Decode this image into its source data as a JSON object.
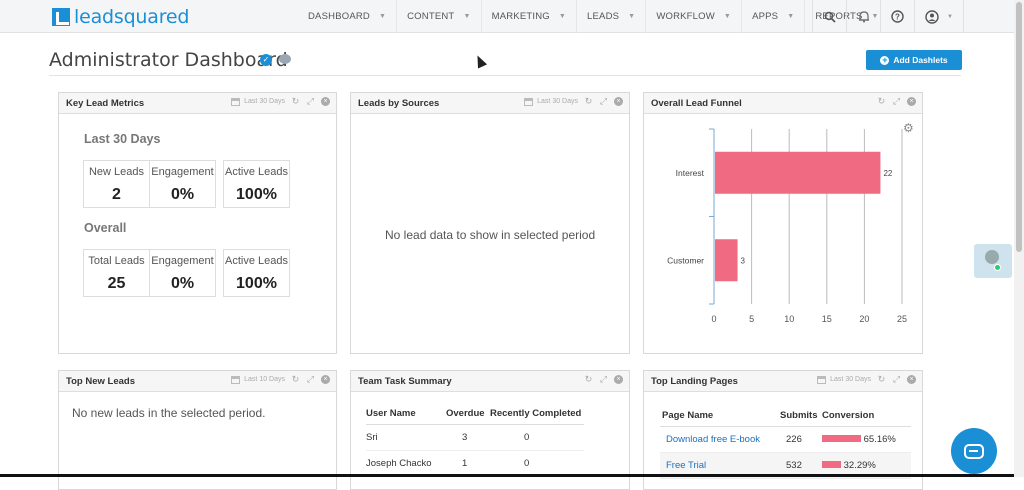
{
  "app": {
    "logo_text": "leadsquared",
    "accent": "#1b8fd6"
  },
  "nav": {
    "items": [
      {
        "label": "DASHBOARD"
      },
      {
        "label": "CONTENT"
      },
      {
        "label": "MARKETING"
      },
      {
        "label": "LEADS"
      },
      {
        "label": "WORKFLOW"
      },
      {
        "label": "APPS"
      },
      {
        "label": "REPORTS"
      }
    ],
    "icons": [
      "search-icon",
      "bell-icon",
      "help-icon",
      "user-icon"
    ]
  },
  "page": {
    "title": "Administrator Dashboard",
    "add_button": "Add Dashlets"
  },
  "dashlets": {
    "key_metrics": {
      "title": "Key Lead Metrics",
      "period": "Last 30 Days",
      "section1": "Last 30 Days",
      "section2": "Overall",
      "last30": [
        {
          "label": "New Leads",
          "value": "2"
        },
        {
          "label": "Engagement",
          "value": "0%"
        },
        {
          "label": "Active Leads",
          "value": "100%"
        }
      ],
      "overall": [
        {
          "label": "Total Leads",
          "value": "25"
        },
        {
          "label": "Engagement",
          "value": "0%"
        },
        {
          "label": "Active Leads",
          "value": "100%"
        }
      ]
    },
    "lead_sources": {
      "title": "Leads by Sources",
      "period": "Last 30 Days",
      "empty": "No lead data to show in selected period"
    },
    "funnel": {
      "title": "Overall Lead Funnel"
    },
    "top_new_leads": {
      "title": "Top New Leads",
      "period": "Last 10 Days",
      "empty": "No new leads in the selected period."
    },
    "team_tasks": {
      "title": "Team Task Summary",
      "headers": [
        "User Name",
        "Overdue",
        "Recently Completed"
      ],
      "rows": [
        {
          "name": "Sri",
          "overdue": "3",
          "completed": "0"
        },
        {
          "name": "Joseph Chacko",
          "overdue": "1",
          "completed": "0"
        }
      ]
    },
    "landing_pages": {
      "title": "Top Landing Pages",
      "period": "Last 30 Days",
      "headers": [
        "Page Name",
        "Submits",
        "Conversion"
      ],
      "rows": [
        {
          "name": "Download free E-book",
          "submits": "226",
          "conversion": "65.16%",
          "fraction": 0.6516
        },
        {
          "name": "Free Trial",
          "submits": "532",
          "conversion": "32.29%",
          "fraction": 0.3229
        }
      ]
    }
  },
  "chart_data": {
    "type": "bar",
    "orientation": "horizontal",
    "categories": [
      "Interest",
      "Customer"
    ],
    "values": [
      22,
      3
    ],
    "data_labels": [
      "22",
      "3"
    ],
    "xlim": [
      0,
      25
    ],
    "x_ticks": [
      "0",
      "5",
      "10",
      "15",
      "20",
      "25"
    ],
    "grid": true,
    "bar_color": "#f06a82"
  }
}
